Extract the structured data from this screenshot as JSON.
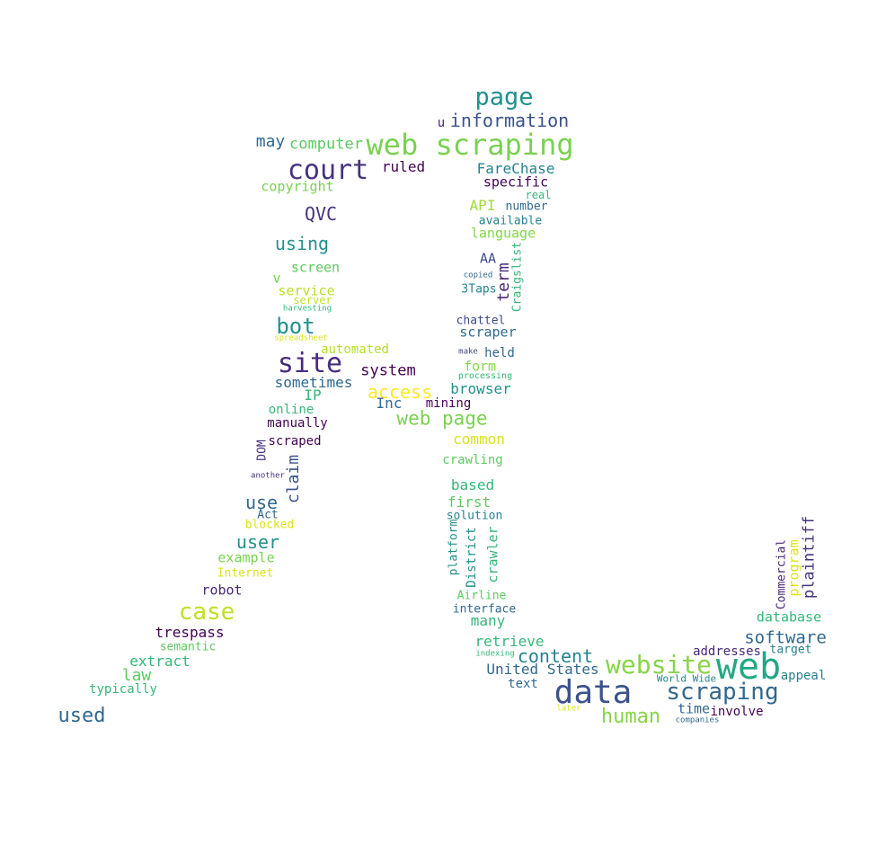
{
  "cloud": {
    "words": [
      {
        "text": "page",
        "color": "#21918c"
      },
      {
        "text": "information",
        "color": "#3b528b"
      },
      {
        "text": "u",
        "color": "#482878"
      },
      {
        "text": "web scraping",
        "color": "#7ad151"
      },
      {
        "text": "may",
        "color": "#31688e"
      },
      {
        "text": "computer",
        "color": "#5ec962"
      },
      {
        "text": "court",
        "color": "#46327e"
      },
      {
        "text": "ruled",
        "color": "#440154"
      },
      {
        "text": "FareChase",
        "color": "#26828e"
      },
      {
        "text": "specific",
        "color": "#440154"
      },
      {
        "text": "copyright",
        "color": "#7ad151"
      },
      {
        "text": "real",
        "color": "#35b779"
      },
      {
        "text": "API",
        "color": "#a0da39"
      },
      {
        "text": "number",
        "color": "#31688e"
      },
      {
        "text": "QVC",
        "color": "#46327e"
      },
      {
        "text": "available",
        "color": "#26828e"
      },
      {
        "text": "language",
        "color": "#86d549"
      },
      {
        "text": "using",
        "color": "#21918c"
      },
      {
        "text": "AA",
        "color": "#3e4989"
      },
      {
        "text": "screen",
        "color": "#5ec962"
      },
      {
        "text": "v",
        "color": "#7ad151"
      },
      {
        "text": "term",
        "color": "#482878"
      },
      {
        "text": "Craigslist",
        "color": "#35b779"
      },
      {
        "text": "copied",
        "color": "#31688e"
      },
      {
        "text": "service",
        "color": "#b5de2b"
      },
      {
        "text": "3Taps",
        "color": "#26828e"
      },
      {
        "text": "server",
        "color": "#c2df23"
      },
      {
        "text": "harvesting",
        "color": "#35b779"
      },
      {
        "text": "bot",
        "color": "#21918c"
      },
      {
        "text": "chattel",
        "color": "#3e4989"
      },
      {
        "text": "scraper",
        "color": "#31688e"
      },
      {
        "text": "spreadsheet",
        "color": "#dde318"
      },
      {
        "text": "automated",
        "color": "#b5de2b"
      },
      {
        "text": "make",
        "color": "#3e4989"
      },
      {
        "text": "held",
        "color": "#31688e"
      },
      {
        "text": "site",
        "color": "#472d7b"
      },
      {
        "text": "system",
        "color": "#440154"
      },
      {
        "text": "form",
        "color": "#86d549"
      },
      {
        "text": "processing",
        "color": "#35b779"
      },
      {
        "text": "sometimes",
        "color": "#31688e"
      },
      {
        "text": "access",
        "color": "#fde725"
      },
      {
        "text": "browser",
        "color": "#21918c"
      },
      {
        "text": "IP",
        "color": "#35b779"
      },
      {
        "text": "Inc",
        "color": "#31688e"
      },
      {
        "text": "mining",
        "color": "#440154"
      },
      {
        "text": "online",
        "color": "#35b779"
      },
      {
        "text": "web page",
        "color": "#7ad151"
      },
      {
        "text": "manually",
        "color": "#440154"
      },
      {
        "text": "common",
        "color": "#d8e219"
      },
      {
        "text": "scraped",
        "color": "#440154"
      },
      {
        "text": "DOM",
        "color": "#46327e"
      },
      {
        "text": "crawling",
        "color": "#5ec962"
      },
      {
        "text": "claim",
        "color": "#3b528b"
      },
      {
        "text": "another",
        "color": "#46327e"
      },
      {
        "text": "based",
        "color": "#35b779"
      },
      {
        "text": "use",
        "color": "#31688e"
      },
      {
        "text": "first",
        "color": "#5ec962"
      },
      {
        "text": "Act",
        "color": "#31688e"
      },
      {
        "text": "solution",
        "color": "#26828e"
      },
      {
        "text": "blocked",
        "color": "#dde318"
      },
      {
        "text": "crawler",
        "color": "#35b779"
      },
      {
        "text": "platform",
        "color": "#21918c"
      },
      {
        "text": "District",
        "color": "#21918c"
      },
      {
        "text": "plaintiff",
        "color": "#46327e"
      },
      {
        "text": "user",
        "color": "#21918c"
      },
      {
        "text": "program",
        "color": "#dde318"
      },
      {
        "text": "Commercial",
        "color": "#482878"
      },
      {
        "text": "example",
        "color": "#7ad151"
      },
      {
        "text": "Internet",
        "color": "#dde318"
      },
      {
        "text": "robot",
        "color": "#482878"
      },
      {
        "text": "Airline",
        "color": "#5ec962"
      },
      {
        "text": "interface",
        "color": "#31688e"
      },
      {
        "text": "case",
        "color": "#c2df23"
      },
      {
        "text": "many",
        "color": "#35b779"
      },
      {
        "text": "database",
        "color": "#35b779"
      },
      {
        "text": "trespass",
        "color": "#440154"
      },
      {
        "text": "software",
        "color": "#31688e"
      },
      {
        "text": "retrieve",
        "color": "#35b779"
      },
      {
        "text": "semantic",
        "color": "#5ec962"
      },
      {
        "text": "target",
        "color": "#26828e"
      },
      {
        "text": "addresses",
        "color": "#482878"
      },
      {
        "text": "content",
        "color": "#26828e"
      },
      {
        "text": "indexing",
        "color": "#35b779"
      },
      {
        "text": "website",
        "color": "#86d549"
      },
      {
        "text": "web",
        "color": "#22a884"
      },
      {
        "text": "extract",
        "color": "#35b779"
      },
      {
        "text": "law",
        "color": "#5ec962"
      },
      {
        "text": "United States",
        "color": "#31688e"
      },
      {
        "text": "World Wide",
        "color": "#26828e"
      },
      {
        "text": "appeal",
        "color": "#26828e"
      },
      {
        "text": "typically",
        "color": "#35b779"
      },
      {
        "text": "text",
        "color": "#31688e"
      },
      {
        "text": "data",
        "color": "#3b528b"
      },
      {
        "text": "scraping",
        "color": "#31688e"
      },
      {
        "text": "time",
        "color": "#31688e"
      },
      {
        "text": "involve",
        "color": "#440154"
      },
      {
        "text": "used",
        "color": "#31688e"
      },
      {
        "text": "later",
        "color": "#dde318"
      },
      {
        "text": "human",
        "color": "#86d549"
      },
      {
        "text": "companies",
        "color": "#31688e"
      }
    ]
  }
}
